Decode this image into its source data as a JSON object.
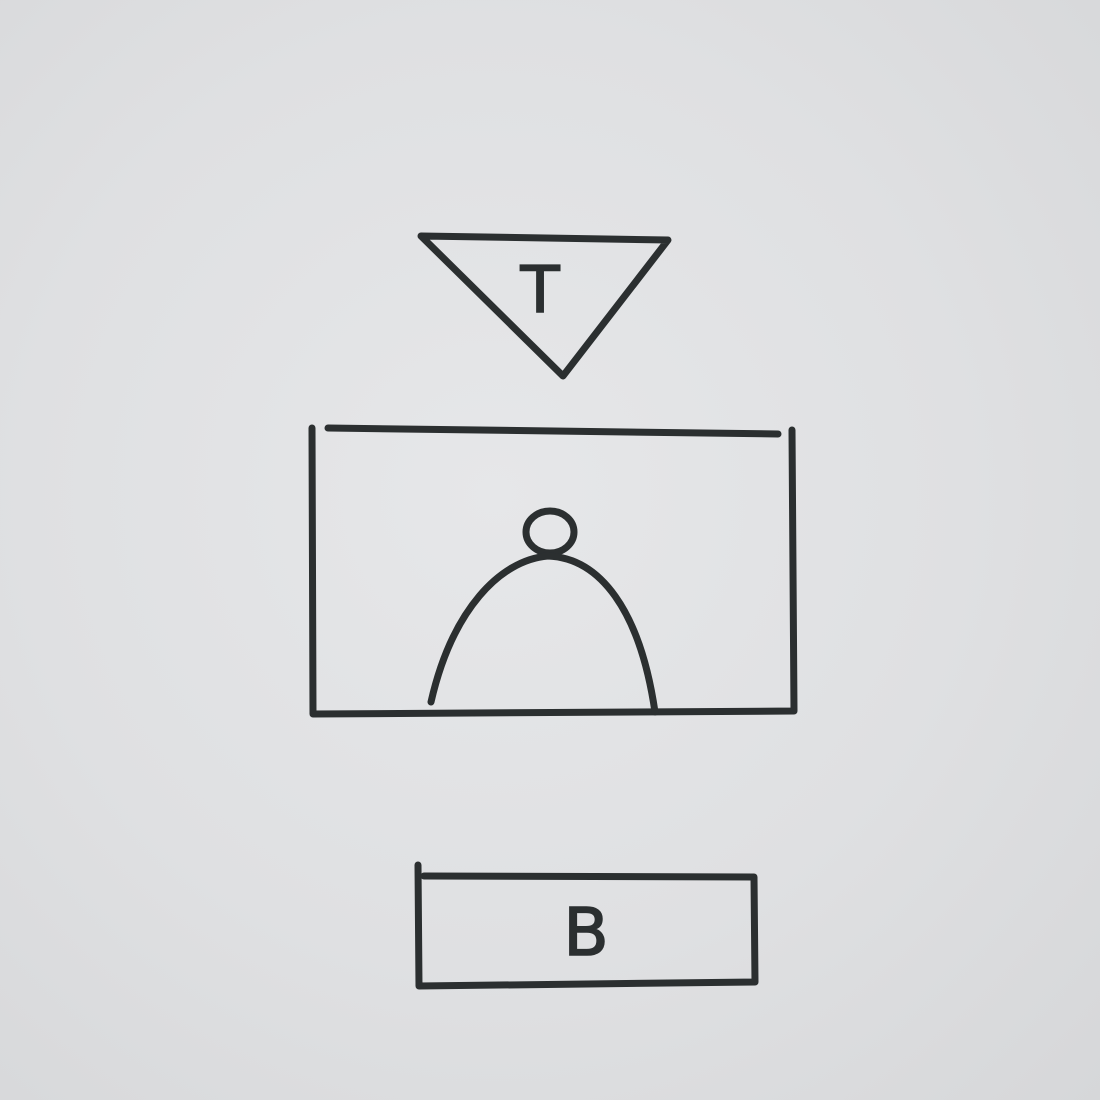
{
  "wireframe": {
    "top_triangle": {
      "label": "T"
    },
    "image_placeholder": {
      "icon": "person-silhouette-icon"
    },
    "bottom_button": {
      "label": "B"
    }
  },
  "colors": {
    "paper": "#e0e1e3",
    "ink": "#2b2f30"
  }
}
